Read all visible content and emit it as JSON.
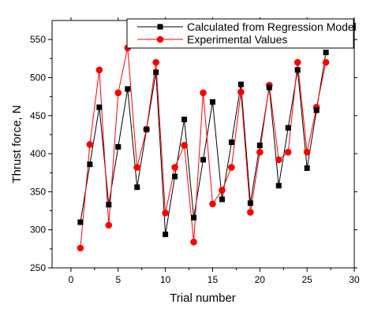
{
  "chart_data": {
    "type": "line",
    "xlabel": "Trial number",
    "ylabel": "Thrust force, N",
    "xlim": [
      -2,
      30
    ],
    "ylim": [
      250,
      575
    ],
    "xticks": [
      0,
      5,
      10,
      15,
      20,
      25,
      30
    ],
    "yticks": [
      250,
      300,
      350,
      400,
      450,
      500,
      550
    ],
    "x": [
      1,
      2,
      3,
      4,
      5,
      6,
      7,
      8,
      9,
      10,
      11,
      12,
      13,
      14,
      15,
      16,
      17,
      18,
      19,
      20,
      21,
      22,
      23,
      24,
      25,
      26,
      27
    ],
    "series": [
      {
        "name": "Calculated from Regression Model",
        "color": "#000000",
        "marker": "square",
        "values": [
          310,
          386,
          461,
          333,
          409,
          485,
          356,
          432,
          507,
          294,
          370,
          445,
          316,
          392,
          468,
          340,
          415,
          491,
          335,
          411,
          487,
          358,
          434,
          510,
          381,
          457,
          533
        ]
      },
      {
        "name": "Experimental Values",
        "color": "#ff0000",
        "marker": "circle",
        "values": [
          276,
          412,
          510,
          306,
          480,
          539,
          382,
          432,
          520,
          322,
          382,
          411,
          284,
          480,
          334,
          352,
          382,
          481,
          323,
          402,
          490,
          392,
          402,
          520,
          402,
          461,
          520
        ]
      }
    ],
    "legend_position": "top-right"
  }
}
